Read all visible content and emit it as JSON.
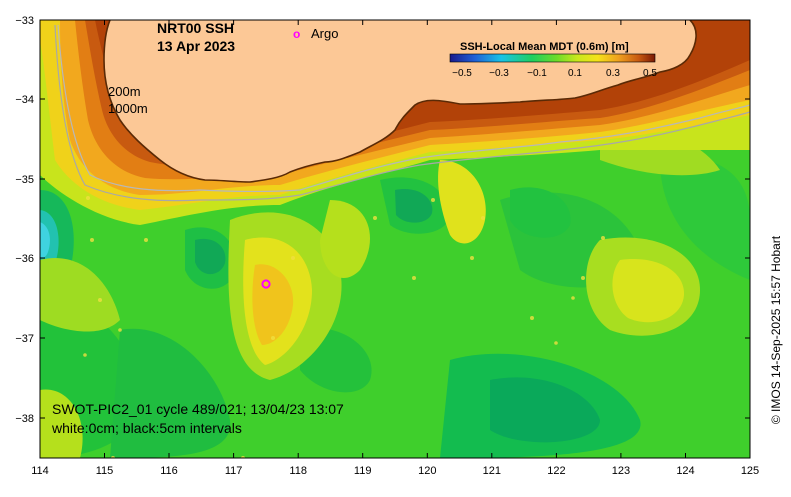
{
  "map": {
    "title_line1": "NRT00 SSH",
    "title_line2": "13 Apr 2023",
    "legend_marker": "o",
    "legend_label": "Argo",
    "depth_label_1": "200m",
    "depth_label_2": "1000m",
    "colorbar_title": "SSH-Local Mean MDT (0.6m) [m]",
    "colorbar_ticks": [
      "−0.5",
      "−0.3",
      "−0.1",
      "0.1",
      "0.3",
      "0.5"
    ],
    "footer_line1": "SWOT-PIC2_01 cycle 489/021; 13/04/23 13:07",
    "footer_line2": "white:0cm; black:5cm intervals",
    "credit": "© IMOS 14-Sep-2025 15:57 Hobart",
    "lat_ticks": [
      "−33",
      "−34",
      "−35",
      "−36",
      "−37",
      "−38"
    ],
    "lon_ticks": [
      "114",
      "115",
      "116",
      "117",
      "118",
      "119",
      "120",
      "121",
      "122",
      "123",
      "124",
      "125"
    ],
    "colors": {
      "land": "#fcc896",
      "ocean_base": "#33cc33",
      "argo": "#ff00ff"
    }
  }
}
